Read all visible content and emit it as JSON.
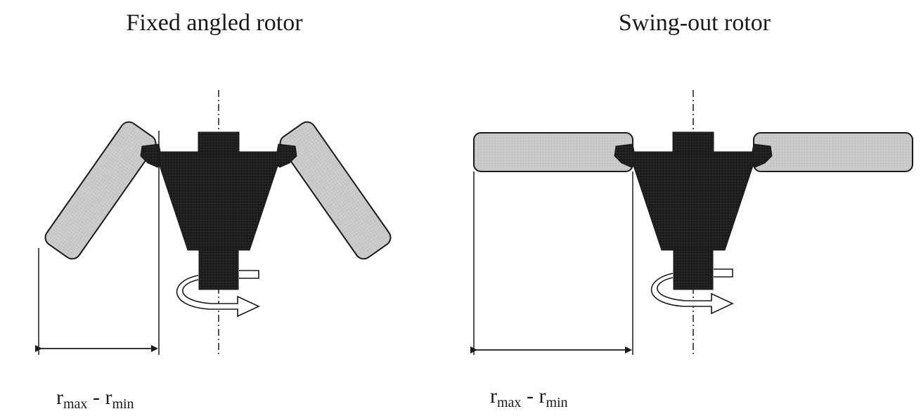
{
  "diagram": {
    "panels": [
      {
        "id": "fixed",
        "title": "Fixed angled rotor",
        "formula": {
          "r1": "r",
          "sub1": "max",
          "minus": " - ",
          "r2": "r",
          "sub2": "min"
        }
      },
      {
        "id": "swing",
        "title": "Swing-out rotor",
        "formula": {
          "r1": "r",
          "sub1": "max",
          "minus": " - ",
          "r2": "r",
          "sub2": "min"
        }
      }
    ],
    "colors": {
      "rotor_body": "#1e1e1e",
      "tube_fill": "#c8c8c8",
      "line": "#1a1a1a"
    }
  }
}
